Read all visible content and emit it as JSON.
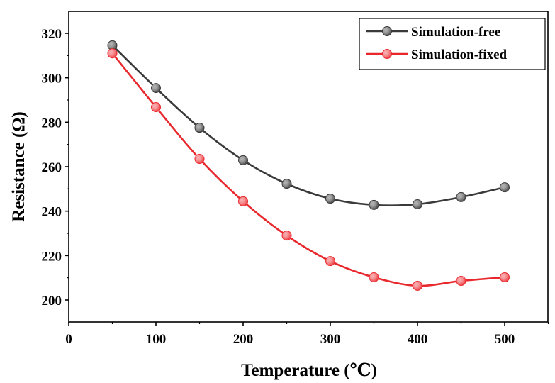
{
  "chart_data": {
    "type": "line",
    "title": "",
    "xlabel": "Temperature (℃)",
    "ylabel": "Resistance (Ω)",
    "xlim": [
      0,
      550
    ],
    "ylim": [
      190,
      325
    ],
    "xticks": [
      0,
      100,
      200,
      300,
      400,
      500
    ],
    "yticks": [
      200,
      220,
      240,
      260,
      280,
      300,
      320
    ],
    "x": [
      50,
      100,
      150,
      200,
      250,
      300,
      350,
      400,
      450,
      500
    ],
    "series": [
      {
        "name": "Simulation-free",
        "color": "#3a3a3a",
        "marker_color": "#555555",
        "values": [
          314.6,
          295.4,
          277.5,
          262.9,
          252.3,
          245.6,
          242.8,
          243.1,
          246.3,
          250.7
        ]
      },
      {
        "name": "Simulation-fixed",
        "color": "#e8282d",
        "marker_color": "#f04a4f",
        "values": [
          311.0,
          286.8,
          263.5,
          244.4,
          229.0,
          217.5,
          210.2,
          206.4,
          208.6,
          210.2
        ]
      }
    ],
    "legend_position": "top-right",
    "grid": false
  }
}
